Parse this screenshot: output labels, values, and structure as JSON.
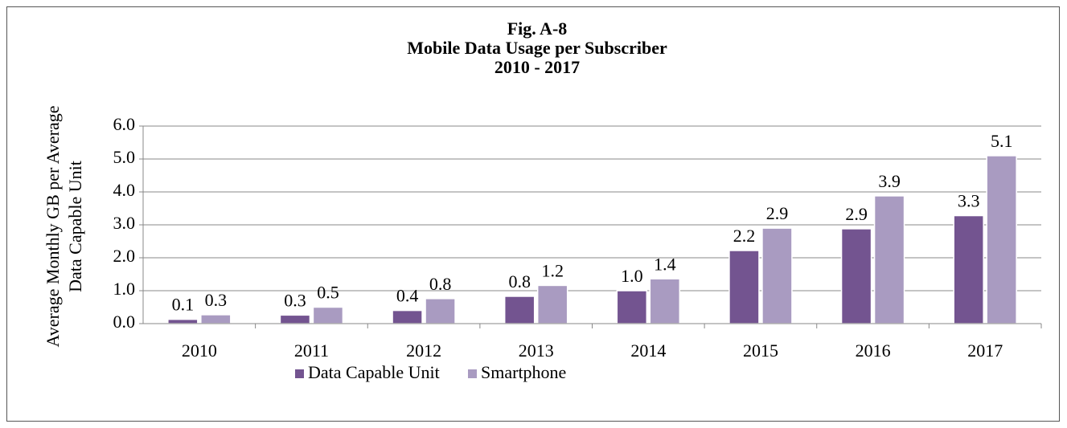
{
  "chart_data": {
    "type": "bar",
    "title": [
      "Fig. A-8",
      "Mobile Data Usage per Subscriber",
      "2010 - 2017"
    ],
    "y_label": [
      "Average Monthly GB per Average",
      "Data Capable Unit"
    ],
    "categories": [
      "2010",
      "2011",
      "2012",
      "2013",
      "2014",
      "2015",
      "2016",
      "2017"
    ],
    "series": [
      {
        "name": "Data Capable Unit",
        "color": "#735490",
        "values": [
          0.13,
          0.26,
          0.4,
          0.83,
          1.0,
          2.22,
          2.88,
          3.28
        ],
        "value_labels": [
          "0.1",
          "0.3",
          "0.4",
          "0.8",
          "1.0",
          "2.2",
          "2.9",
          "3.3"
        ]
      },
      {
        "name": "Smartphone",
        "color": "#a99bc1",
        "values": [
          0.27,
          0.5,
          0.76,
          1.16,
          1.36,
          2.9,
          3.88,
          5.1
        ],
        "value_labels": [
          "0.3",
          "0.5",
          "0.8",
          "1.2",
          "1.4",
          "2.9",
          "3.9",
          "5.1"
        ]
      }
    ],
    "ylim": [
      0,
      6
    ],
    "yticks": [
      {
        "value": 0,
        "label": "0.0"
      },
      {
        "value": 1,
        "label": "1.0"
      },
      {
        "value": 2,
        "label": "2.0"
      },
      {
        "value": 3,
        "label": "3.0"
      },
      {
        "value": 4,
        "label": "4.0"
      },
      {
        "value": 5,
        "label": "5.0"
      },
      {
        "value": 6,
        "label": "6.0"
      }
    ],
    "grid": true,
    "legend": "bottom"
  }
}
